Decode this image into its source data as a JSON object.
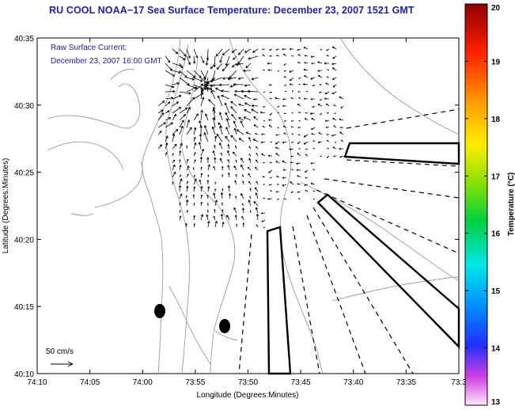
{
  "title": "RU COOL  NOAA−17  Sea Surface Temperature:  December 23, 2007 1521 GMT",
  "annotation": {
    "line1": "Raw Surface Current:",
    "line2": "December 23, 2007 16:00 GMT"
  },
  "scale_label": "50 cm/s",
  "x_axis": {
    "label": "Longitude (Degrees:Minutes)",
    "ticks": [
      "74:10",
      "74:05",
      "74:00",
      "73:55",
      "73:50",
      "73:45",
      "73:40",
      "73:35",
      "73:3"
    ]
  },
  "y_axis": {
    "label": "Latitude (Degrees:Minutes)",
    "ticks": [
      "40:10",
      "40:15",
      "40:20",
      "40:25",
      "40:30",
      "40:35"
    ]
  },
  "colorbar": {
    "label": "Temperature (°C)",
    "ticks": [
      "13",
      "14",
      "15",
      "16",
      "17",
      "18",
      "19",
      "20"
    ],
    "min": 13,
    "max": 20
  },
  "colors": {
    "title": "#2020b0",
    "annotation": "#2020b0",
    "contour": "#9a9a9a"
  }
}
